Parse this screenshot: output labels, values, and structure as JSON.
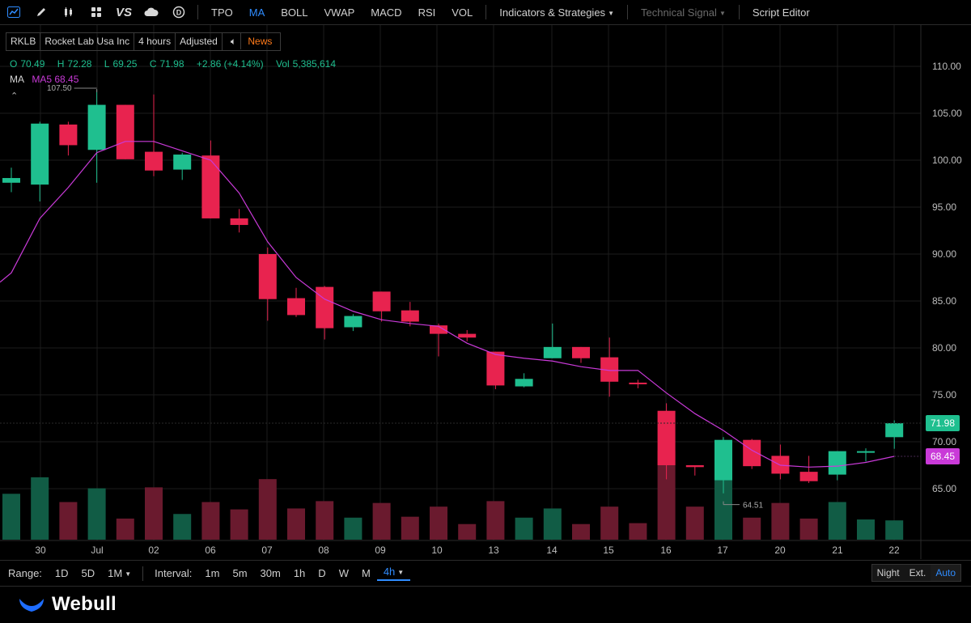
{
  "toolbar": {
    "icons": [
      "chart-type-icon",
      "draw-pencil-icon",
      "candlestick-icon",
      "grid-layout-icon",
      "compare-vs-icon",
      "cloud-icon",
      "dividend-icon"
    ],
    "vs_label": "VS",
    "items": [
      "TPO",
      "MA",
      "BOLL",
      "VWAP",
      "MACD",
      "RSI",
      "VOL"
    ],
    "indicators_label": "Indicators & Strategies",
    "technical_signal_label": "Technical Signal",
    "script_editor_label": "Script Editor"
  },
  "info": {
    "symbol": "RKLB",
    "name": "Rocket Lab Usa Inc",
    "interval": "4 hours",
    "adjust": "Adjusted",
    "news": "News"
  },
  "ohlc": {
    "o_label": "O",
    "o": "70.49",
    "h_label": "H",
    "h": "72.28",
    "l_label": "L",
    "l": "69.25",
    "c_label": "C",
    "c": "71.98",
    "change": "+2.86 (+4.14%)",
    "vol_label": "Vol",
    "vol": "5,385,614"
  },
  "ma": {
    "title": "MA",
    "label": "MA5",
    "value": "68.45"
  },
  "colors": {
    "up": "#1fbf8f",
    "down": "#e8234f",
    "ma": "#c93ad8",
    "up_vol": "#115c45",
    "down_vol": "#6a1a2e",
    "accent": "#2f8cff"
  },
  "chart_data": {
    "type": "candlestick",
    "y_ticks": [
      "110.00",
      "105.00",
      "100.00",
      "95.00",
      "90.00",
      "85.00",
      "80.00",
      "75.00",
      "70.00",
      "65.00"
    ],
    "x_labels": [
      "30",
      "Jul",
      "02",
      "06",
      "07",
      "08",
      "09",
      "10",
      "13",
      "14",
      "15",
      "16",
      "17",
      "20",
      "21",
      "22"
    ],
    "ylim": [
      62.0,
      112.5
    ],
    "candles": [
      {
        "o": 97.6,
        "c": 98.1,
        "h": 99.2,
        "l": 96.6
      },
      {
        "o": 97.4,
        "c": 103.9,
        "h": 104.1,
        "l": 95.6
      },
      {
        "o": 103.8,
        "c": 101.6,
        "h": 104.1,
        "l": 100.5
      },
      {
        "o": 101.1,
        "c": 105.9,
        "h": 107.5,
        "l": 97.6
      },
      {
        "o": 105.9,
        "c": 100.1,
        "h": 105.9,
        "l": 100.1
      },
      {
        "o": 100.9,
        "c": 98.9,
        "h": 107.0,
        "l": 98.3
      },
      {
        "o": 99.0,
        "c": 100.6,
        "h": 100.8,
        "l": 97.9
      },
      {
        "o": 100.5,
        "c": 93.8,
        "h": 102.1,
        "l": 93.8
      },
      {
        "o": 93.8,
        "c": 93.1,
        "h": 94.8,
        "l": 92.3
      },
      {
        "o": 90.0,
        "c": 85.2,
        "h": 90.7,
        "l": 82.9
      },
      {
        "o": 85.3,
        "c": 83.5,
        "h": 86.4,
        "l": 83.3
      },
      {
        "o": 86.5,
        "c": 82.1,
        "h": 86.6,
        "l": 80.9
      },
      {
        "o": 82.2,
        "c": 83.4,
        "h": 83.6,
        "l": 81.8
      },
      {
        "o": 86.0,
        "c": 83.9,
        "h": 86.0,
        "l": 82.8
      },
      {
        "o": 84.0,
        "c": 82.8,
        "h": 84.9,
        "l": 82.3
      },
      {
        "o": 82.4,
        "c": 81.5,
        "h": 82.6,
        "l": 79.1
      },
      {
        "o": 81.5,
        "c": 81.1,
        "h": 81.9,
        "l": 80.7
      },
      {
        "o": 79.6,
        "c": 76.0,
        "h": 79.6,
        "l": 75.6
      },
      {
        "o": 75.9,
        "c": 76.7,
        "h": 77.3,
        "l": 75.8
      },
      {
        "o": 78.9,
        "c": 80.1,
        "h": 82.6,
        "l": 78.9
      },
      {
        "o": 80.1,
        "c": 78.9,
        "h": 80.1,
        "l": 78.4
      },
      {
        "o": 79.0,
        "c": 76.4,
        "h": 81.1,
        "l": 74.8
      },
      {
        "o": 76.3,
        "c": 76.2,
        "h": 76.6,
        "l": 75.7
      },
      {
        "o": 73.3,
        "c": 67.5,
        "h": 74.1,
        "l": 66.0
      },
      {
        "o": 67.5,
        "c": 67.3,
        "h": 67.5,
        "l": 66.4
      },
      {
        "o": 65.9,
        "c": 70.2,
        "h": 70.5,
        "l": 64.5
      },
      {
        "o": 70.2,
        "c": 67.4,
        "h": 70.3,
        "l": 67.1
      },
      {
        "o": 68.5,
        "c": 66.6,
        "h": 69.7,
        "l": 66.0
      },
      {
        "o": 66.8,
        "c": 65.8,
        "h": 68.5,
        "l": 65.6
      },
      {
        "o": 66.5,
        "c": 69.0,
        "h": 69.0,
        "l": 65.9
      },
      {
        "o": 68.9,
        "c": 69.0,
        "h": 69.3,
        "l": 67.9
      },
      {
        "o": 70.49,
        "c": 71.98,
        "h": 72.28,
        "l": 69.25
      }
    ],
    "volumes": [
      50,
      68,
      41,
      56,
      23,
      57,
      28,
      41,
      33,
      66,
      34,
      42,
      24,
      40,
      25,
      36,
      17,
      42,
      24,
      34,
      17,
      36,
      18,
      97,
      36,
      78,
      24,
      40,
      23,
      41,
      22,
      21
    ],
    "ma5": [
      88.0,
      93.8,
      97.1,
      100.8,
      102.0,
      102.0,
      101.0,
      100.0,
      96.5,
      91.3,
      87.5,
      85.2,
      83.9,
      83.0,
      82.6,
      82.3,
      80.5,
      79.3,
      78.9,
      78.6,
      78.0,
      77.6,
      77.6,
      75.2,
      73.0,
      71.2,
      69.1,
      67.5,
      67.3,
      67.4,
      67.8,
      68.45
    ],
    "high_label": "107.50",
    "low_label": "64.51",
    "last_price": "71.98",
    "ma_price": "68.45"
  },
  "bottom": {
    "range_label": "Range:",
    "ranges": [
      "1D",
      "5D",
      "1M"
    ],
    "interval_label": "Interval:",
    "intervals": [
      "1m",
      "5m",
      "30m",
      "1h",
      "D",
      "W",
      "M"
    ],
    "active_interval": "4h",
    "sessions": [
      "Night",
      "Ext.",
      "Auto"
    ]
  },
  "brand": "Webull"
}
